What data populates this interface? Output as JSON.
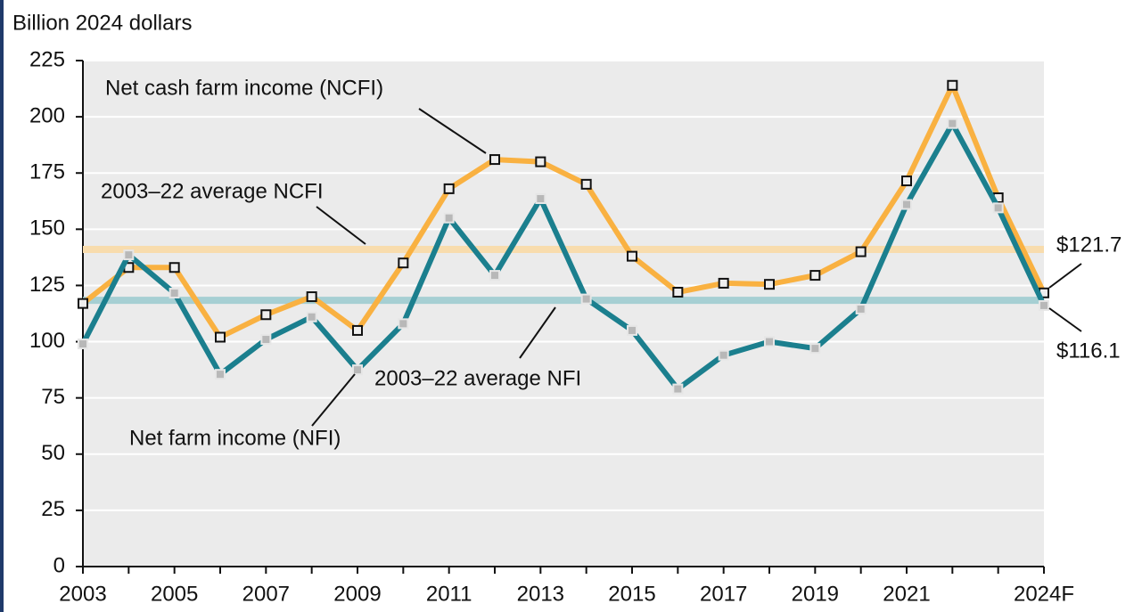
{
  "chart_data": {
    "type": "line",
    "y_axis_label": "Billion 2024 dollars",
    "categories": [
      "2003",
      null,
      "2005",
      null,
      "2007",
      null,
      "2009",
      null,
      "2011",
      null,
      "2013",
      null,
      "2015",
      null,
      "2017",
      null,
      "2019",
      null,
      "2021",
      null,
      null,
      "2024F"
    ],
    "series": [
      {
        "name": "Net cash farm income (NCFI)",
        "color": "#f9b141",
        "marker_fill": "#eeeeee",
        "marker_stroke": "#111111",
        "values": [
          117,
          133,
          133,
          102,
          112,
          120,
          105,
          135,
          168,
          181,
          180,
          170,
          138,
          122,
          126,
          125.5,
          129.5,
          140,
          171.5,
          214,
          164,
          121.7
        ]
      },
      {
        "name": "Net farm income (NFI)",
        "color": "#1b7f8e",
        "marker_fill": "#b8b8b8",
        "marker_stroke": "#e6e6e6",
        "values": [
          99,
          138.6,
          121.6,
          85.5,
          101,
          111,
          87.5,
          108,
          155,
          129.5,
          163.6,
          119,
          105,
          79,
          94,
          100,
          97,
          114.5,
          161,
          197,
          159.5,
          116.1
        ]
      }
    ],
    "reference_lines": [
      {
        "label": "2003–22 average NCFI",
        "value": 141,
        "color": "#f8dcad"
      },
      {
        "label": "2003–22 average NFI",
        "value": 118.4,
        "color": "#a6cfd3"
      }
    ],
    "annotations": [
      "$121.7",
      "$116.1"
    ],
    "ylim": [
      0,
      225
    ],
    "yticks": [
      0,
      25,
      50,
      75,
      100,
      125,
      150,
      175,
      200,
      225
    ],
    "grid": true
  }
}
